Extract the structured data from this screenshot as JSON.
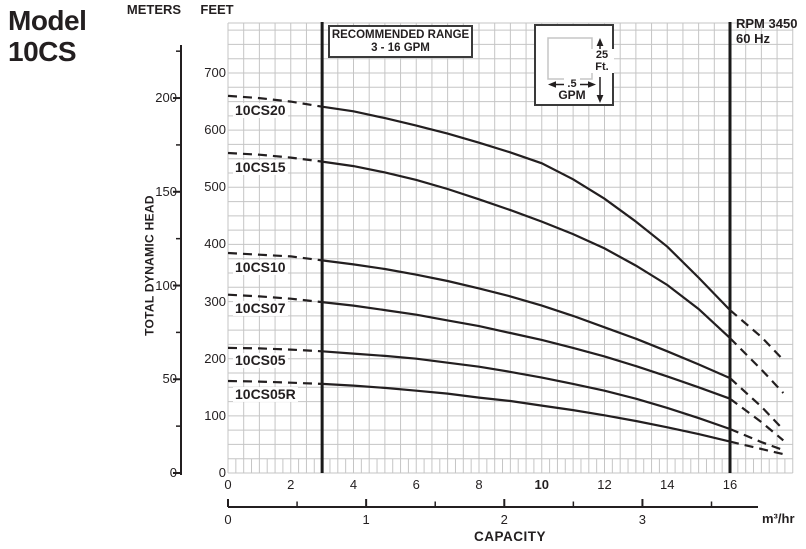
{
  "title": {
    "line1": "Model",
    "line2": "10CS"
  },
  "axis_headers": {
    "meters": "METERS",
    "feet": "FEET"
  },
  "y_axis_title": "TOTAL DYNAMIC HEAD",
  "annotations": {
    "recommended_range": {
      "line1": "RECOMMENDED RANGE",
      "line2": "3 - 16 GPM"
    },
    "rpm_note": {
      "line1": "RPM 3450",
      "line2": "60 Hz"
    },
    "scale_legend": {
      "vertical_value": "25",
      "vertical_unit": "Ft.",
      "horizontal_value": ".5",
      "horizontal_unit": "GPM"
    }
  },
  "x_axis": {
    "label": "CAPACITY",
    "gpm_tick_labels": [
      0,
      2,
      4,
      6,
      8,
      10,
      12,
      14,
      16
    ],
    "gpm_bold_tick": 10,
    "m3hr_tick_labels": [
      0,
      1,
      2,
      3
    ],
    "m3hr_unit": "m³/hr"
  },
  "y_axis": {
    "feet_tick_labels": [
      0,
      100,
      200,
      300,
      400,
      500,
      600,
      700
    ],
    "meters_tick_labels": [
      0,
      50,
      100,
      150,
      200
    ]
  },
  "colors": {
    "ink": "#231f20",
    "grid": "#c5c5c5",
    "thick_line": "#1a1a1a",
    "background": "#ffffff"
  },
  "chart_data": {
    "type": "line",
    "title": "Model 10CS pump performance curves",
    "xlabel": "CAPACITY",
    "x_units_primary": "GPM",
    "x_units_secondary": "m³/hr",
    "ylabel": "TOTAL DYNAMIC HEAD",
    "y_units_primary": "FEET",
    "y_units_secondary": "METERS",
    "xlim_gpm": [
      0,
      18
    ],
    "ylim_ft": [
      0,
      790
    ],
    "grid": {
      "gpm_per_cell": 0.5,
      "ft_per_cell": 25,
      "fine_bottom_row_gpm_step": 0.25
    },
    "gpm_per_m3hr": 4.403,
    "recommended_range_gpm": [
      3,
      16
    ],
    "solid_range_gpm": [
      3,
      16
    ],
    "rpm": 3450,
    "frequency_hz": 60,
    "series": [
      {
        "name": "10CS20",
        "points_gpm_ft": [
          [
            0,
            660
          ],
          [
            1,
            656
          ],
          [
            2,
            650
          ],
          [
            3,
            641
          ],
          [
            4,
            633
          ],
          [
            5,
            621
          ],
          [
            6,
            608
          ],
          [
            7,
            594
          ],
          [
            8,
            578
          ],
          [
            9,
            561
          ],
          [
            10,
            542
          ],
          [
            11,
            514
          ],
          [
            12,
            480
          ],
          [
            13,
            440
          ],
          [
            14,
            396
          ],
          [
            15,
            342
          ],
          [
            16,
            285
          ],
          [
            17,
            238
          ],
          [
            17.7,
            198
          ]
        ]
      },
      {
        "name": "10CS15",
        "points_gpm_ft": [
          [
            0,
            560
          ],
          [
            1,
            557
          ],
          [
            2,
            552
          ],
          [
            3,
            545
          ],
          [
            4,
            537
          ],
          [
            5,
            526
          ],
          [
            6,
            513
          ],
          [
            7,
            497
          ],
          [
            8,
            479
          ],
          [
            9,
            460
          ],
          [
            10,
            440
          ],
          [
            11,
            418
          ],
          [
            12,
            393
          ],
          [
            13,
            363
          ],
          [
            14,
            329
          ],
          [
            15,
            287
          ],
          [
            16,
            236
          ],
          [
            17,
            181
          ],
          [
            17.7,
            140
          ]
        ]
      },
      {
        "name": "10CS10",
        "points_gpm_ft": [
          [
            0,
            385
          ],
          [
            1,
            382
          ],
          [
            2,
            379
          ],
          [
            3,
            372
          ],
          [
            4,
            365
          ],
          [
            5,
            357
          ],
          [
            6,
            347
          ],
          [
            7,
            336
          ],
          [
            8,
            323
          ],
          [
            9,
            309
          ],
          [
            10,
            293
          ],
          [
            11,
            275
          ],
          [
            12,
            255
          ],
          [
            13,
            235
          ],
          [
            14,
            213
          ],
          [
            15,
            190
          ],
          [
            16,
            166
          ],
          [
            17,
            116
          ],
          [
            17.7,
            76
          ]
        ]
      },
      {
        "name": "10CS07",
        "points_gpm_ft": [
          [
            0,
            312
          ],
          [
            1,
            309
          ],
          [
            2,
            305
          ],
          [
            3,
            299
          ],
          [
            4,
            293
          ],
          [
            5,
            285
          ],
          [
            6,
            277
          ],
          [
            7,
            267
          ],
          [
            8,
            257
          ],
          [
            9,
            245
          ],
          [
            10,
            233
          ],
          [
            11,
            219
          ],
          [
            12,
            204
          ],
          [
            13,
            187
          ],
          [
            14,
            169
          ],
          [
            15,
            150
          ],
          [
            16,
            130
          ],
          [
            17,
            89
          ],
          [
            17.7,
            57
          ]
        ]
      },
      {
        "name": "10CS05",
        "points_gpm_ft": [
          [
            0,
            219
          ],
          [
            1,
            218
          ],
          [
            2,
            216
          ],
          [
            3,
            213
          ],
          [
            4,
            209
          ],
          [
            5,
            205
          ],
          [
            6,
            200
          ],
          [
            7,
            193
          ],
          [
            8,
            186
          ],
          [
            9,
            177
          ],
          [
            10,
            167
          ],
          [
            11,
            156
          ],
          [
            12,
            144
          ],
          [
            13,
            130
          ],
          [
            14,
            114
          ],
          [
            15,
            96
          ],
          [
            16,
            77
          ],
          [
            17,
            54
          ],
          [
            17.7,
            40
          ]
        ]
      },
      {
        "name": "10CS05R",
        "points_gpm_ft": [
          [
            0,
            161
          ],
          [
            1,
            160
          ],
          [
            2,
            158
          ],
          [
            3,
            156
          ],
          [
            4,
            153
          ],
          [
            5,
            149
          ],
          [
            6,
            144
          ],
          [
            7,
            139
          ],
          [
            8,
            132
          ],
          [
            9,
            126
          ],
          [
            10,
            118
          ],
          [
            11,
            110
          ],
          [
            12,
            101
          ],
          [
            13,
            91
          ],
          [
            14,
            80
          ],
          [
            15,
            68
          ],
          [
            16,
            55
          ],
          [
            17,
            42
          ],
          [
            17.7,
            33
          ]
        ]
      }
    ]
  }
}
